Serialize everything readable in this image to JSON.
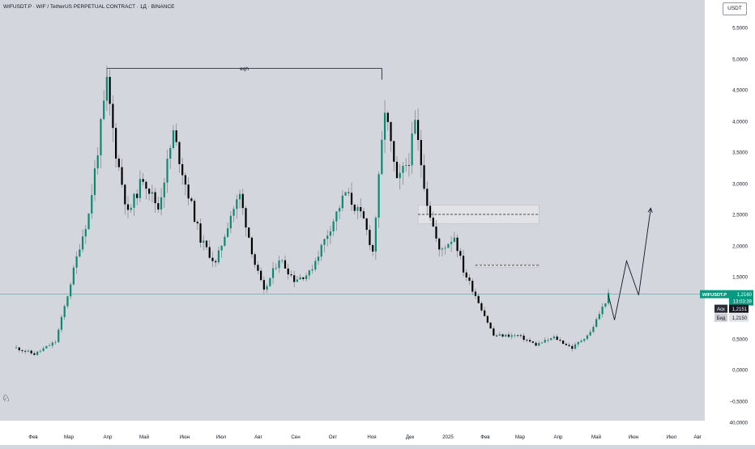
{
  "header": {
    "title": "WIFUSDT.P · WIF / TetherUS PERPETUAL CONTRACT · 1Д · BINANCE",
    "currency": "USDT"
  },
  "chart_data": {
    "type": "candlestick",
    "y_ticks": [
      "5,5000",
      "5,0000",
      "4,5000",
      "4,0000",
      "3,5000",
      "3,0000",
      "2,5000",
      "2,0000",
      "1,5000",
      "1,0000",
      "0,5000",
      "0,0000",
      "−0,5000",
      "40,0000"
    ],
    "x_ticks": [
      "Фев",
      "Мар",
      "Апр",
      "Май",
      "Июн",
      "Июл",
      "Авг",
      "Сен",
      "Окт",
      "Ноя",
      "Дек",
      "2025",
      "Фев",
      "Мар",
      "Апр",
      "Май",
      "Июн",
      "Июл",
      "Авг"
    ],
    "ylim": [
      -0.5,
      5.5
    ],
    "close_path": [
      [
        0,
        0.35
      ],
      [
        6,
        0.25
      ],
      [
        13,
        0.45
      ],
      [
        17,
        1.2
      ],
      [
        21,
        2.0
      ],
      [
        24,
        2.5
      ],
      [
        30,
        4.6
      ],
      [
        33,
        3.5
      ],
      [
        37,
        2.5
      ],
      [
        42,
        3.1
      ],
      [
        47,
        2.6
      ],
      [
        52,
        3.8
      ],
      [
        56,
        3.0
      ],
      [
        61,
        2.1
      ],
      [
        66,
        1.7
      ],
      [
        71,
        2.5
      ],
      [
        74,
        2.8
      ],
      [
        79,
        1.7
      ],
      [
        82,
        1.25
      ],
      [
        87,
        1.8
      ],
      [
        92,
        1.45
      ],
      [
        97,
        1.55
      ],
      [
        104,
        2.3
      ],
      [
        109,
        2.85
      ],
      [
        115,
        2.4
      ],
      [
        118,
        1.9
      ],
      [
        122,
        4.2
      ],
      [
        126,
        3.0
      ],
      [
        130,
        3.4
      ],
      [
        132,
        3.95
      ],
      [
        136,
        2.7
      ],
      [
        140,
        1.9
      ],
      [
        145,
        2.15
      ],
      [
        148,
        1.6
      ],
      [
        152,
        1.2
      ],
      [
        158,
        0.55
      ],
      [
        166,
        0.55
      ],
      [
        172,
        0.4
      ],
      [
        178,
        0.52
      ],
      [
        184,
        0.35
      ],
      [
        190,
        0.6
      ],
      [
        196,
        1.2
      ]
    ],
    "projection": [
      [
        196,
        1.2
      ],
      [
        198,
        0.8
      ],
      [
        202,
        1.75
      ],
      [
        206,
        1.2
      ],
      [
        210,
        2.6
      ]
    ],
    "eqh": {
      "label": "eqh",
      "from": 30,
      "to": 121,
      "value": 4.85
    },
    "zones": [
      {
        "from": 133,
        "to": 173,
        "low": 2.35,
        "high": 2.65,
        "mid": 2.5
      },
      {
        "from": 152,
        "to": 173,
        "low": 1.65,
        "high": 1.7,
        "mid": 1.68
      }
    ],
    "price_line": 1.216,
    "labels": {
      "symbol": "WIFUSDT.P",
      "last": "1,2160",
      "countdown": "13:03:39",
      "ask_label": "Аск",
      "ask": "1,2151",
      "bid_label": "Бид",
      "bid": "1,2150"
    },
    "colors": {
      "up": "#0a8a72",
      "down": "#000000",
      "wick": "#7d7f86",
      "accent": "#089981",
      "grid_bg": "#d4d6dd",
      "axis_bg": "#ffffff"
    }
  }
}
